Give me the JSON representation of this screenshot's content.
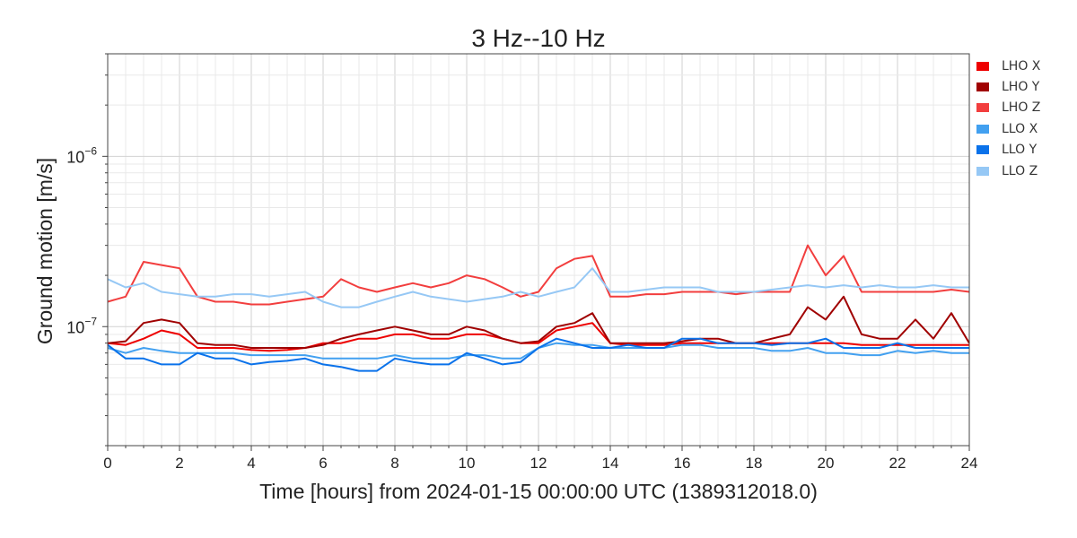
{
  "chart_data": {
    "type": "line",
    "title": "3 Hz--10 Hz",
    "xlabel": "Time [hours] from 2024-01-15 00:00:00 UTC (1389312018.0)",
    "ylabel": "Ground motion [m/s]",
    "x_range": [
      0,
      24
    ],
    "y_range": [
      2e-08,
      4e-06
    ],
    "y_scale": "log",
    "x_ticks": [
      "0",
      "2",
      "4",
      "6",
      "8",
      "10",
      "12",
      "14",
      "16",
      "18",
      "20",
      "22",
      "24"
    ],
    "y_ticks": [
      {
        "value": 1e-07,
        "base": "10",
        "exp": "−7"
      },
      {
        "value": 1e-06,
        "base": "10",
        "exp": "−6"
      }
    ],
    "grid": true,
    "legend_position": "upper-right, outside plot",
    "x": [
      0,
      0.5,
      1,
      1.5,
      2,
      2.5,
      3,
      3.5,
      4,
      4.5,
      5,
      5.5,
      6,
      6.5,
      7,
      7.5,
      8,
      8.5,
      9,
      9.5,
      10,
      10.5,
      11,
      11.5,
      12,
      12.5,
      13,
      13.5,
      14,
      14.5,
      15,
      15.5,
      16,
      16.5,
      17,
      17.5,
      18,
      18.5,
      19,
      19.5,
      20,
      20.5,
      21,
      21.5,
      22,
      22.5,
      23,
      23.5,
      24
    ],
    "series": [
      {
        "name": "LHO X",
        "color": "#ee0000",
        "values": [
          8e-08,
          7.8e-08,
          8.5e-08,
          9.5e-08,
          9e-08,
          7.5e-08,
          7.5e-08,
          7.5e-08,
          7.3e-08,
          7.2e-08,
          7.3e-08,
          7.5e-08,
          8e-08,
          8e-08,
          8.5e-08,
          8.5e-08,
          9e-08,
          9e-08,
          8.5e-08,
          8.5e-08,
          9e-08,
          9e-08,
          8.5e-08,
          8e-08,
          8e-08,
          9.5e-08,
          1e-07,
          1.05e-07,
          8e-08,
          7.8e-08,
          7.8e-08,
          7.8e-08,
          8e-08,
          8e-08,
          8e-08,
          8e-08,
          8e-08,
          8e-08,
          8e-08,
          8e-08,
          8e-08,
          8e-08,
          7.8e-08,
          7.8e-08,
          7.8e-08,
          7.8e-08,
          7.8e-08,
          7.8e-08,
          7.8e-08
        ]
      },
      {
        "name": "LHO Y",
        "color": "#a00000",
        "values": [
          8e-08,
          8.2e-08,
          1.05e-07,
          1.1e-07,
          1.05e-07,
          8e-08,
          7.8e-08,
          7.8e-08,
          7.5e-08,
          7.5e-08,
          7.5e-08,
          7.5e-08,
          7.8e-08,
          8.5e-08,
          9e-08,
          9.5e-08,
          1e-07,
          9.5e-08,
          9e-08,
          9e-08,
          1e-07,
          9.5e-08,
          8.5e-08,
          8e-08,
          8.2e-08,
          1e-07,
          1.05e-07,
          1.2e-07,
          8e-08,
          8e-08,
          8e-08,
          8e-08,
          8.2e-08,
          8.5e-08,
          8.5e-08,
          8e-08,
          8e-08,
          8.5e-08,
          9e-08,
          1.3e-07,
          1.1e-07,
          1.5e-07,
          9e-08,
          8.5e-08,
          8.5e-08,
          1.1e-07,
          8.5e-08,
          1.2e-07,
          8e-08
        ]
      },
      {
        "name": "LHO Z",
        "color": "#f23e3e",
        "values": [
          1.4e-07,
          1.5e-07,
          2.4e-07,
          2.3e-07,
          2.2e-07,
          1.5e-07,
          1.4e-07,
          1.4e-07,
          1.35e-07,
          1.35e-07,
          1.4e-07,
          1.45e-07,
          1.5e-07,
          1.9e-07,
          1.7e-07,
          1.6e-07,
          1.7e-07,
          1.8e-07,
          1.7e-07,
          1.8e-07,
          2e-07,
          1.9e-07,
          1.7e-07,
          1.5e-07,
          1.6e-07,
          2.2e-07,
          2.5e-07,
          2.6e-07,
          1.5e-07,
          1.5e-07,
          1.55e-07,
          1.55e-07,
          1.6e-07,
          1.6e-07,
          1.6e-07,
          1.55e-07,
          1.6e-07,
          1.6e-07,
          1.6e-07,
          3e-07,
          2e-07,
          2.6e-07,
          1.6e-07,
          1.6e-07,
          1.6e-07,
          1.6e-07,
          1.6e-07,
          1.65e-07,
          1.6e-07
        ]
      },
      {
        "name": "LLO X",
        "color": "#42a0f0",
        "values": [
          7.5e-08,
          7e-08,
          7.5e-08,
          7.2e-08,
          7e-08,
          7e-08,
          7e-08,
          7e-08,
          6.8e-08,
          6.8e-08,
          6.8e-08,
          6.8e-08,
          6.5e-08,
          6.5e-08,
          6.5e-08,
          6.5e-08,
          6.8e-08,
          6.5e-08,
          6.5e-08,
          6.5e-08,
          6.8e-08,
          6.8e-08,
          6.5e-08,
          6.5e-08,
          7.5e-08,
          8e-08,
          7.8e-08,
          7.8e-08,
          7.5e-08,
          7.5e-08,
          7.5e-08,
          7.5e-08,
          7.8e-08,
          7.8e-08,
          7.5e-08,
          7.5e-08,
          7.5e-08,
          7.2e-08,
          7.2e-08,
          7.5e-08,
          7e-08,
          7e-08,
          6.8e-08,
          6.8e-08,
          7.2e-08,
          7e-08,
          7.2e-08,
          7e-08,
          7e-08
        ]
      },
      {
        "name": "LLO Y",
        "color": "#0a72ea",
        "values": [
          7.8e-08,
          6.5e-08,
          6.5e-08,
          6e-08,
          6e-08,
          7e-08,
          6.5e-08,
          6.5e-08,
          6e-08,
          6.2e-08,
          6.3e-08,
          6.5e-08,
          6e-08,
          5.8e-08,
          5.5e-08,
          5.5e-08,
          6.5e-08,
          6.2e-08,
          6e-08,
          6e-08,
          7e-08,
          6.5e-08,
          6e-08,
          6.2e-08,
          7.5e-08,
          8.5e-08,
          8e-08,
          7.5e-08,
          7.5e-08,
          7.8e-08,
          7.5e-08,
          7.5e-08,
          8.5e-08,
          8.5e-08,
          8e-08,
          8e-08,
          8e-08,
          7.8e-08,
          8e-08,
          8e-08,
          8.5e-08,
          7.5e-08,
          7.5e-08,
          7.5e-08,
          8e-08,
          7.5e-08,
          7.5e-08,
          7.5e-08,
          7.5e-08
        ]
      },
      {
        "name": "LLO Z",
        "color": "#96c8f5",
        "values": [
          1.9e-07,
          1.7e-07,
          1.8e-07,
          1.6e-07,
          1.55e-07,
          1.5e-07,
          1.5e-07,
          1.55e-07,
          1.55e-07,
          1.5e-07,
          1.55e-07,
          1.6e-07,
          1.4e-07,
          1.3e-07,
          1.3e-07,
          1.4e-07,
          1.5e-07,
          1.6e-07,
          1.5e-07,
          1.45e-07,
          1.4e-07,
          1.45e-07,
          1.5e-07,
          1.6e-07,
          1.5e-07,
          1.6e-07,
          1.7e-07,
          2.2e-07,
          1.6e-07,
          1.6e-07,
          1.65e-07,
          1.7e-07,
          1.7e-07,
          1.7e-07,
          1.6e-07,
          1.6e-07,
          1.6e-07,
          1.65e-07,
          1.7e-07,
          1.75e-07,
          1.7e-07,
          1.75e-07,
          1.7e-07,
          1.75e-07,
          1.7e-07,
          1.7e-07,
          1.75e-07,
          1.7e-07,
          1.7e-07
        ]
      }
    ]
  }
}
